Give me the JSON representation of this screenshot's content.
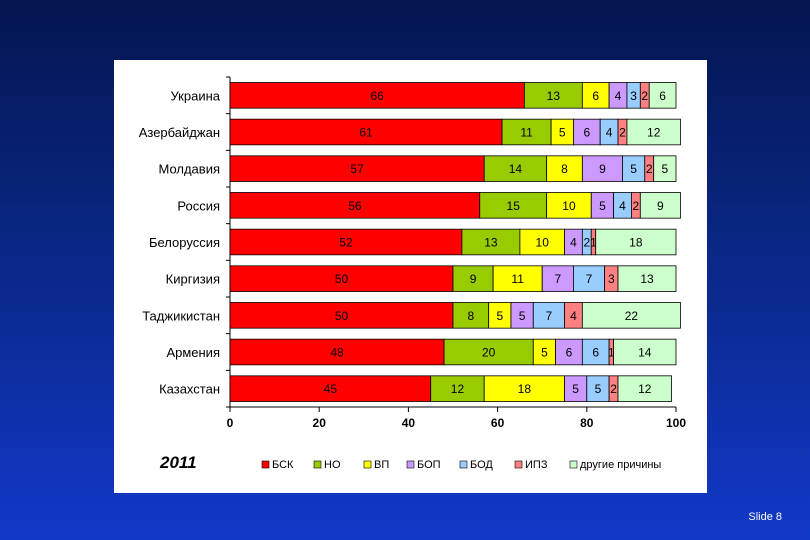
{
  "slide": {
    "number_label": "Slide 8"
  },
  "chart_data": {
    "type": "bar",
    "orientation": "horizontal",
    "stacked": true,
    "title": "2011",
    "xlabel": "",
    "ylabel": "",
    "xlim": [
      0,
      100
    ],
    "x_ticks": [
      "0",
      "20",
      "40",
      "60",
      "80",
      "100"
    ],
    "grid": false,
    "legend_position": "bottom",
    "categories": [
      "Украина",
      "Азербайджан",
      "Молдавия",
      "Россия",
      "Белоруссия",
      "Киргизия",
      "Таджикистан",
      "Армения",
      "Казахстан"
    ],
    "series": [
      {
        "name": "БСК",
        "color": "#ff0000",
        "values": [
          66,
          61,
          57,
          56,
          52,
          50,
          50,
          48,
          45
        ]
      },
      {
        "name": "НО",
        "color": "#99cc00",
        "values": [
          13,
          11,
          14,
          15,
          13,
          9,
          8,
          20,
          12
        ]
      },
      {
        "name": "ВП",
        "color": "#ffff00",
        "values": [
          6,
          5,
          8,
          10,
          10,
          11,
          5,
          5,
          18
        ]
      },
      {
        "name": "БОП",
        "color": "#cc99ff",
        "values": [
          4,
          6,
          9,
          5,
          4,
          7,
          5,
          6,
          5
        ]
      },
      {
        "name": "БОД",
        "color": "#99ccff",
        "values": [
          3,
          4,
          5,
          4,
          2,
          7,
          7,
          6,
          5
        ]
      },
      {
        "name": "ИПЗ",
        "color": "#ff8080",
        "values": [
          2,
          2,
          2,
          2,
          1,
          3,
          4,
          1,
          2
        ]
      },
      {
        "name": "другие причины",
        "color": "#ccffcc",
        "values": [
          6,
          12,
          5,
          9,
          18,
          13,
          22,
          14,
          12
        ]
      }
    ],
    "data_labels": [
      [
        "66",
        "13",
        "6",
        "4",
        "3",
        "2",
        "6"
      ],
      [
        "61",
        "11",
        "5",
        "6",
        "4",
        "2",
        "12"
      ],
      [
        "57",
        "14",
        "8",
        "9",
        "5",
        "2",
        "5"
      ],
      [
        "56",
        "15",
        "10",
        "5",
        "4",
        "2",
        "9"
      ],
      [
        "52",
        "13",
        "10",
        "4",
        "2",
        "1",
        "18"
      ],
      [
        "50",
        "9",
        "11",
        "7",
        "7",
        "3",
        "13"
      ],
      [
        "50",
        "8",
        "5",
        "5",
        "7",
        "4",
        "22"
      ],
      [
        "48",
        "20",
        "5",
        "6",
        "6",
        "1",
        "14"
      ],
      [
        "45",
        "12",
        "18",
        "5",
        "5",
        "2",
        "12"
      ]
    ]
  }
}
